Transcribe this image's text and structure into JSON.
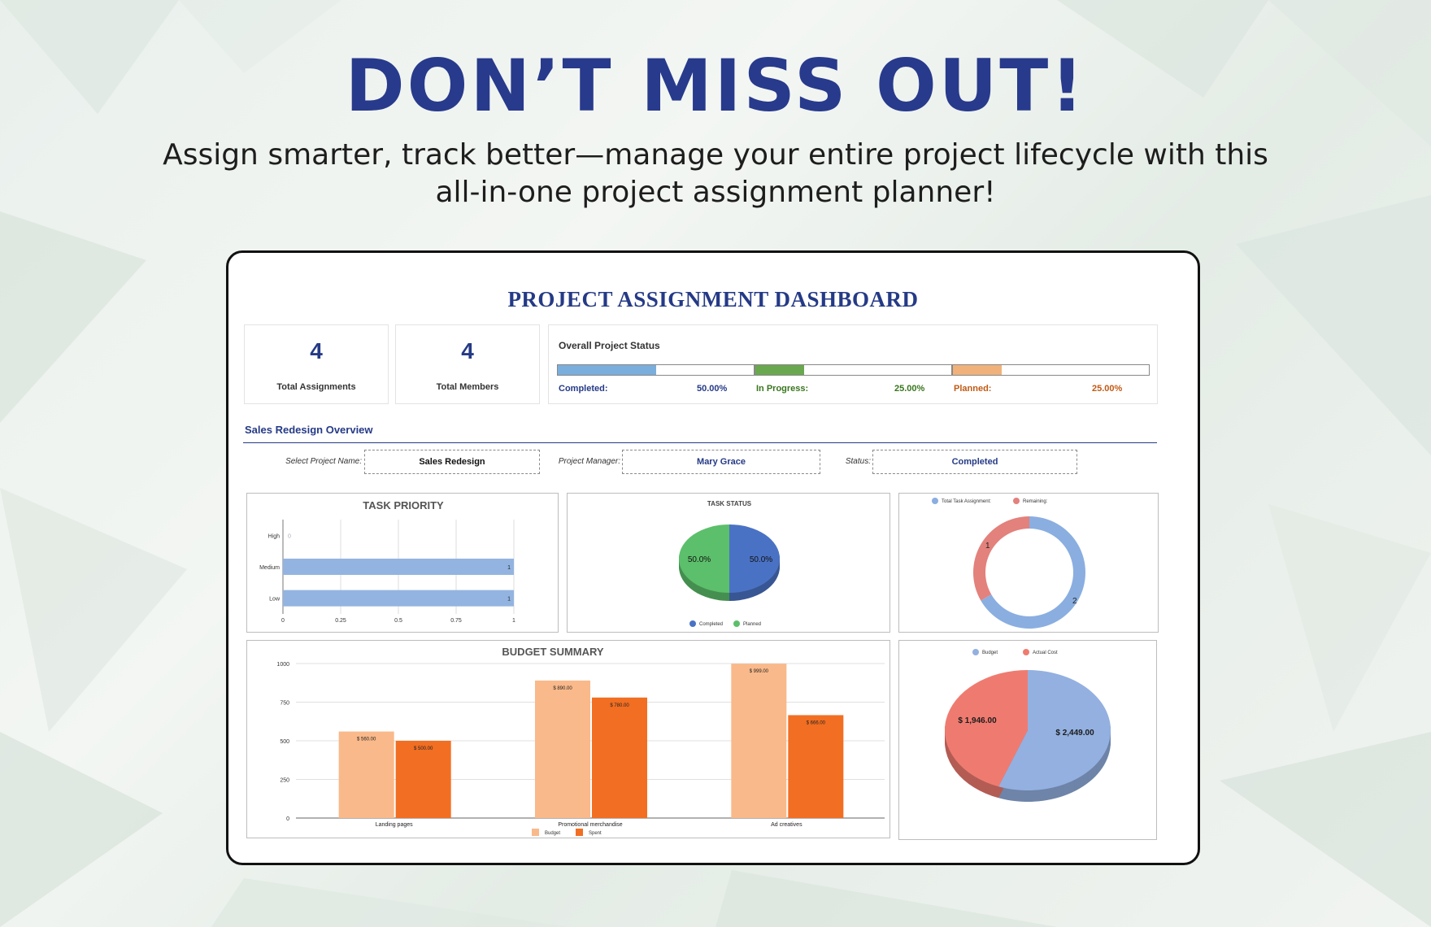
{
  "hero": {
    "title": "DON’T MISS OUT!",
    "subtitle_line1": "Assign smarter, track better—manage your entire project lifecycle with this",
    "subtitle_line2": "all-in-one project assignment planner!"
  },
  "dashboard": {
    "title": "PROJECT ASSIGNMENT DASHBOARD",
    "kpis": [
      {
        "value": "4",
        "label": "Total Assignments"
      },
      {
        "value": "4",
        "label": "Total Members"
      }
    ],
    "overall_status": {
      "title": "Overall Project Status",
      "items": [
        {
          "label": "Completed:",
          "value": "50.00%",
          "fraction": 0.5,
          "color": "#7aaedc",
          "text_color": "#253a86"
        },
        {
          "label": "In Progress:",
          "value": "25.00%",
          "fraction": 0.25,
          "color": "#6aa84f",
          "text_color": "#38761d"
        },
        {
          "label": "Planned:",
          "value": "25.00%",
          "fraction": 0.25,
          "color": "#f0b27a",
          "text_color": "#c05a14"
        }
      ]
    },
    "section_title": "Sales Redesign Overview",
    "selectors": {
      "project_label": "Select Project Name:",
      "project_value": "Sales Redesign",
      "manager_label": "Project Manager:",
      "manager_value": "Mary Grace",
      "status_label": "Status:",
      "status_value": "Completed"
    }
  },
  "chart_data": [
    {
      "type": "bar",
      "orientation": "horizontal",
      "title": "TASK PRIORITY",
      "categories": [
        "High",
        "Medium",
        "Low"
      ],
      "values": [
        0,
        1,
        1
      ],
      "data_labels": [
        "0",
        "1",
        "1"
      ],
      "xlim": [
        0,
        1
      ],
      "xticks": [
        "0",
        "0.25",
        "0.5",
        "0.75",
        "1"
      ],
      "color": "#93b4e0",
      "grid": true
    },
    {
      "type": "pie",
      "title": "TASK STATUS",
      "style": "3d",
      "slices": [
        {
          "name": "Completed",
          "value": 50.0,
          "label": "50.0%",
          "color": "#4a72c4"
        },
        {
          "name": "Planned",
          "value": 50.0,
          "label": "50.0%",
          "color": "#5cbf6b"
        }
      ],
      "legend_position": "bottom"
    },
    {
      "type": "pie",
      "style": "donut",
      "slices": [
        {
          "name": "Total Task Assignment:",
          "value": 2,
          "label": "2",
          "color": "#8aaee0"
        },
        {
          "name": "Remaining:",
          "value": 1,
          "label": "1",
          "color": "#e3817c"
        }
      ],
      "legend_position": "top"
    },
    {
      "type": "bar",
      "title": "BUDGET SUMMARY",
      "categories": [
        "Landing pages",
        "Promotional merchandise",
        "Ad creatives"
      ],
      "series": [
        {
          "name": "Budget",
          "values": [
            560,
            890,
            999
          ],
          "labels": [
            "$ 560.00",
            "$ 890.00",
            "$ 999.00"
          ],
          "color": "#f9b98a"
        },
        {
          "name": "Spent",
          "values": [
            500,
            780,
            666
          ],
          "labels": [
            "$ 500.00",
            "$ 780.00",
            "$ 666.00"
          ],
          "color": "#f26e22"
        }
      ],
      "ylim": [
        0,
        1000
      ],
      "yticks": [
        "0",
        "250",
        "500",
        "750",
        "1000"
      ],
      "grid": true,
      "legend_position": "bottom"
    },
    {
      "type": "pie",
      "style": "3d",
      "slices": [
        {
          "name": "Budget",
          "value": 2449.0,
          "label": "$ 2,449.00",
          "color": "#93b0e0"
        },
        {
          "name": "Actual Cost",
          "value": 1946.0,
          "label": "$ 1,946.00",
          "color": "#ef7b70"
        }
      ],
      "legend_position": "top"
    }
  ]
}
